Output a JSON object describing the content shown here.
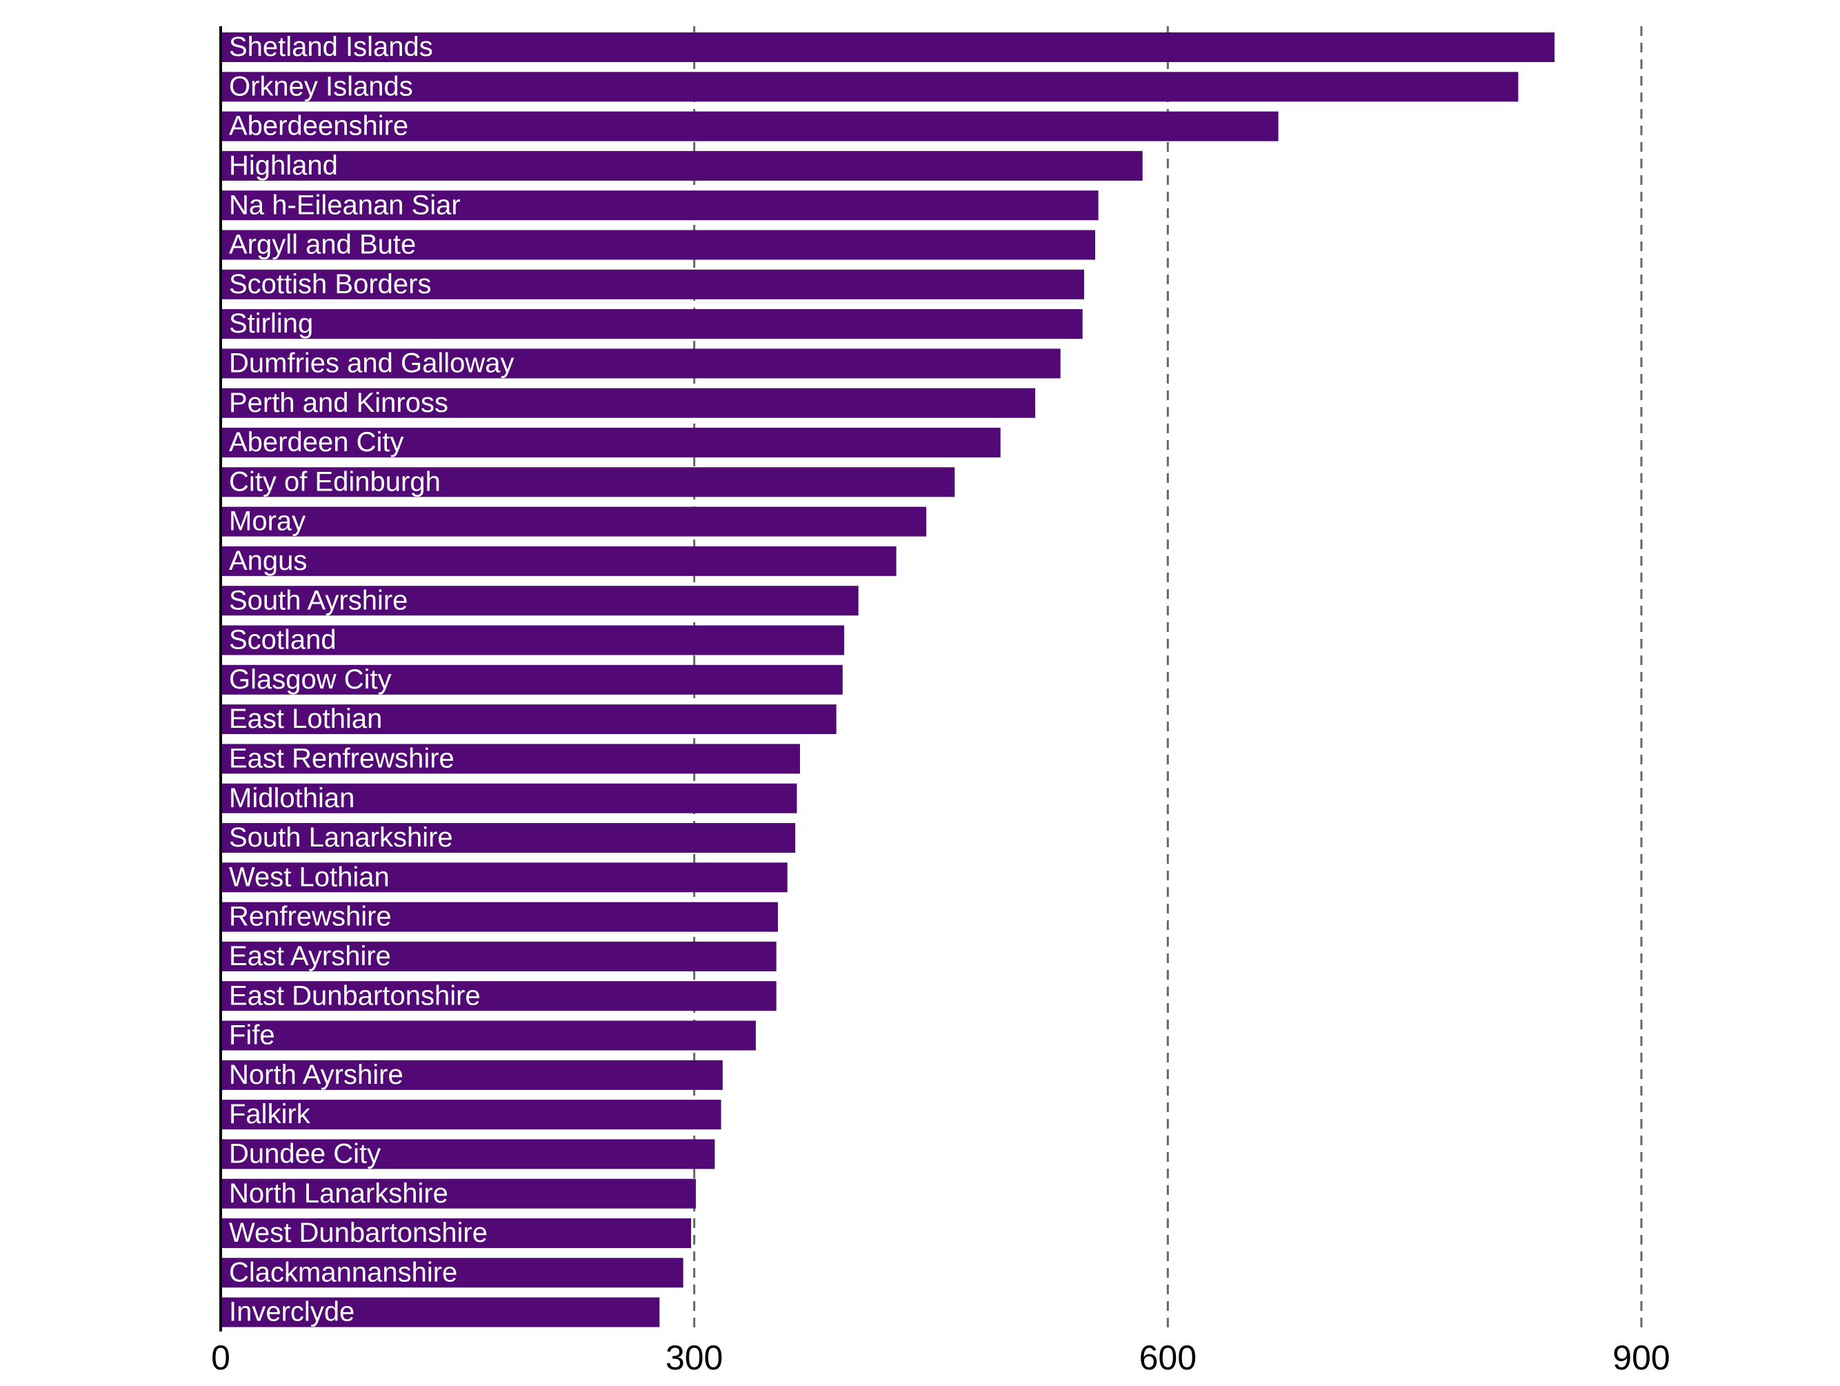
{
  "chart_data": {
    "type": "bar",
    "orientation": "horizontal",
    "categories": [
      "Shetland Islands",
      "Orkney Islands",
      "Aberdeenshire",
      "Highland",
      "Na h-Eileanan Siar",
      "Argyll and Bute",
      "Scottish Borders",
      "Stirling",
      "Dumfries and Galloway",
      "Perth and Kinross",
      "Aberdeen City",
      "City of Edinburgh",
      "Moray",
      "Angus",
      "South Ayrshire",
      "Scotland",
      "Glasgow City",
      "East Lothian",
      "East Renfrewshire",
      "Midlothian",
      "South Lanarkshire",
      "West Lothian",
      "Renfrewshire",
      "East Ayrshire",
      "East Dunbartonshire",
      "Fife",
      "North Ayrshire",
      "Falkirk",
      "Dundee City",
      "North Lanarkshire",
      "West Dunbartonshire",
      "Clackmannanshire",
      "Inverclyde"
    ],
    "values": [
      845,
      822,
      670,
      584,
      556,
      554,
      547,
      546,
      532,
      516,
      494,
      465,
      447,
      428,
      404,
      395,
      394,
      390,
      367,
      365,
      364,
      359,
      353,
      352,
      352,
      339,
      318,
      317,
      313,
      301,
      298,
      293,
      278
    ],
    "xlim": [
      0,
      900
    ],
    "ticks": [
      "0",
      "300",
      "600",
      "900"
    ],
    "tick_values": [
      0,
      300,
      600,
      900
    ],
    "grid": true,
    "bar_color": "#520875",
    "label_color": "#ffffff"
  }
}
